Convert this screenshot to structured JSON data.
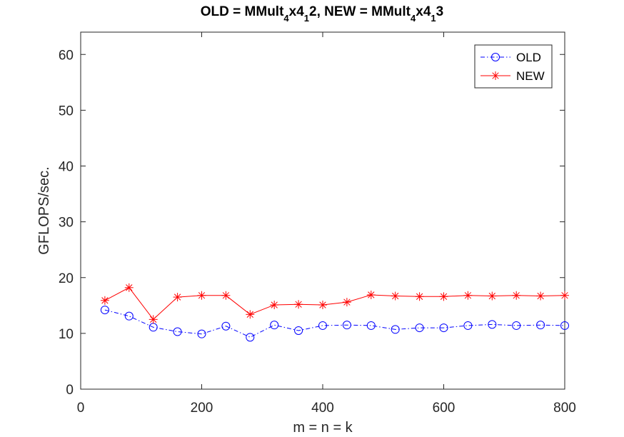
{
  "chart_data": {
    "type": "line",
    "title_parts": [
      {
        "text": "OLD = MMult",
        "sub": false
      },
      {
        "text": "4",
        "sub": true
      },
      {
        "text": "x4",
        "sub": false
      },
      {
        "text": "1",
        "sub": true
      },
      {
        "text": "2, NEW = MMult",
        "sub": false
      },
      {
        "text": "4",
        "sub": true
      },
      {
        "text": "x4",
        "sub": false
      },
      {
        "text": "1",
        "sub": true
      },
      {
        "text": "3",
        "sub": false
      }
    ],
    "xlabel": "m = n = k",
    "ylabel": "GFLOPS/sec.",
    "xlim": [
      0,
      800
    ],
    "ylim": [
      0,
      64
    ],
    "xticks": [
      0,
      200,
      400,
      600,
      800
    ],
    "yticks": [
      0,
      10,
      20,
      30,
      40,
      50,
      60
    ],
    "grid": false,
    "legend_position": "top-right",
    "x": [
      40,
      80,
      120,
      160,
      200,
      240,
      280,
      320,
      360,
      400,
      440,
      480,
      520,
      560,
      600,
      640,
      680,
      720,
      760,
      800
    ],
    "series": [
      {
        "name": "OLD",
        "color": "#0000ff",
        "line_style": "dash-dot",
        "marker": "circle",
        "values": [
          14.2,
          13.1,
          11.1,
          10.3,
          9.9,
          11.3,
          9.3,
          11.5,
          10.5,
          11.4,
          11.5,
          11.4,
          10.7,
          11.0,
          11.0,
          11.4,
          11.6,
          11.4,
          11.5,
          11.4
        ]
      },
      {
        "name": "NEW",
        "color": "#ff0000",
        "line_style": "solid",
        "marker": "asterisk",
        "values": [
          15.9,
          18.2,
          12.5,
          16.5,
          16.8,
          16.8,
          13.4,
          15.1,
          15.2,
          15.1,
          15.6,
          16.9,
          16.7,
          16.6,
          16.6,
          16.8,
          16.7,
          16.8,
          16.7,
          16.8
        ]
      }
    ]
  }
}
